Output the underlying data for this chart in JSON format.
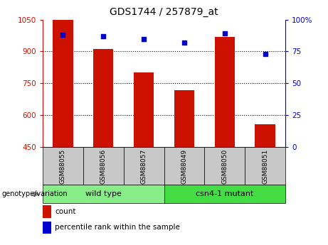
{
  "title": "GDS1744 / 257879_at",
  "categories": [
    "GSM88055",
    "GSM88056",
    "GSM88057",
    "GSM88049",
    "GSM88050",
    "GSM88051"
  ],
  "counts": [
    1047,
    912,
    800,
    718,
    970,
    558
  ],
  "percentile_ranks": [
    88,
    87,
    85,
    82,
    89,
    73
  ],
  "bar_color": "#cc1100",
  "dot_color": "#0000cc",
  "ylim_left": [
    450,
    1050
  ],
  "ylim_right": [
    0,
    100
  ],
  "yticks_left": [
    450,
    600,
    750,
    900,
    1050
  ],
  "yticks_right": [
    0,
    25,
    50,
    75,
    100
  ],
  "groups": [
    {
      "label": "wild type",
      "indices": [
        0,
        1,
        2
      ],
      "color": "#88ee88"
    },
    {
      "label": "csn4-1 mutant",
      "indices": [
        3,
        4,
        5
      ],
      "color": "#44dd44"
    }
  ],
  "group_label": "genotype/variation",
  "legend_count_label": "count",
  "legend_percentile_label": "percentile rank within the sample",
  "background_plot": "#ffffff",
  "xtick_bg": "#c8c8c8",
  "title_fontsize": 10,
  "tick_fontsize": 7.5,
  "bar_width": 0.5
}
